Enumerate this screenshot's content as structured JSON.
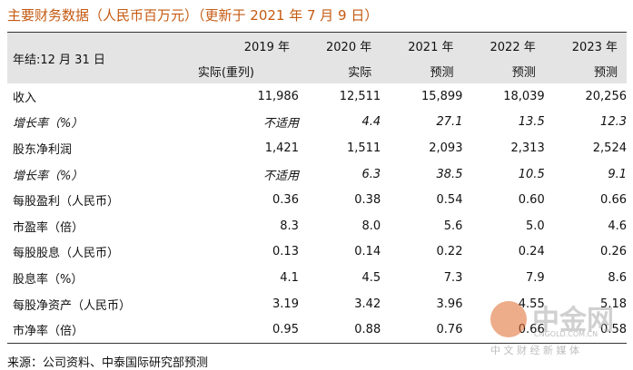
{
  "title": "主要财务数据（人民币百万元）（更新于 2021 年 7 月 9 日）",
  "table": {
    "header": {
      "label": "年结:12 月 31 日",
      "columns": [
        {
          "year": "2019 年",
          "basis": "实际(重列)"
        },
        {
          "year": "2020 年",
          "basis": "实际"
        },
        {
          "year": "2021 年",
          "basis": "预测"
        },
        {
          "year": "2022 年",
          "basis": "预测"
        },
        {
          "year": "2023 年",
          "basis": "预测"
        }
      ]
    },
    "rows": [
      [
        "收入",
        "11,986",
        "12,511",
        "15,899",
        "18,039",
        "20,256"
      ],
      [
        "增长率（%）",
        "不适用",
        "4.4",
        "27.1",
        "13.5",
        "12.3"
      ],
      [
        "股东净利润",
        "1,421",
        "1,511",
        "2,093",
        "2,313",
        "2,524"
      ],
      [
        "增长率（%）",
        "不适用",
        "6.3",
        "38.5",
        "10.5",
        "9.1"
      ],
      [
        "每股盈利（人民币）",
        "0.36",
        "0.38",
        "0.54",
        "0.60",
        "0.66"
      ],
      [
        "市盈率（倍）",
        "8.3",
        "8.0",
        "5.6",
        "5.0",
        "4.6"
      ],
      [
        "每股股息（人民币）",
        "0.13",
        "0.14",
        "0.22",
        "0.24",
        "0.26"
      ],
      [
        "股息率（%）",
        "4.1",
        "4.5",
        "7.3",
        "7.9",
        "8.6"
      ],
      [
        "每股净资产（人民币）",
        "3.19",
        "3.42",
        "3.96",
        "4.55",
        "5.18"
      ],
      [
        "市净率（倍）",
        "0.95",
        "0.88",
        "0.76",
        "0.66",
        "0.58"
      ]
    ]
  },
  "source": "来源：公司资料、中泰国际研究部预测",
  "watermark": {
    "brand": "中金网",
    "domain": "CNGOLD.COM.CN",
    "tagline": "中 文 财 经 新 媒 体"
  }
}
